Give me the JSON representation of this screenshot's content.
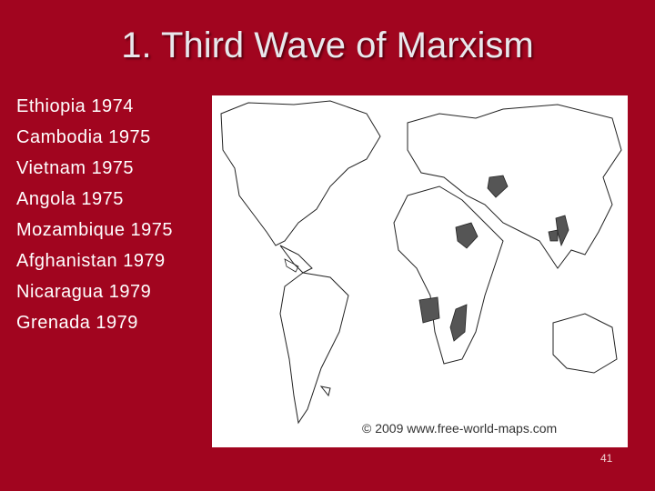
{
  "title": "1. Third Wave of Marxism",
  "list": {
    "items": [
      "Ethiopia 1974",
      "Cambodia 1975",
      "Vietnam 1975",
      "Angola 1975",
      "Mozambique 1975",
      "Afghanistan 1979",
      "Nicaragua 1979",
      "Grenada 1979"
    ]
  },
  "map": {
    "credit": "© 2009 www.free-world-maps.com"
  },
  "page_number": "41"
}
